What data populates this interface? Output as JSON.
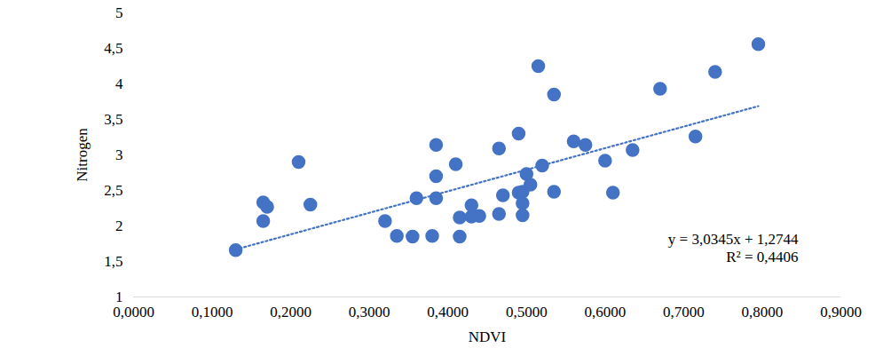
{
  "chart_data": {
    "type": "scatter",
    "x_label": "NDVI",
    "y_label": "Nitrogen",
    "color": "#4472c4",
    "marker": "circle",
    "x": [
      0.13,
      0.165,
      0.165,
      0.17,
      0.21,
      0.225,
      0.32,
      0.335,
      0.355,
      0.36,
      0.38,
      0.385,
      0.385,
      0.385,
      0.41,
      0.415,
      0.415,
      0.43,
      0.43,
      0.44,
      0.465,
      0.465,
      0.47,
      0.49,
      0.49,
      0.495,
      0.495,
      0.495,
      0.5,
      0.505,
      0.515,
      0.52,
      0.535,
      0.535,
      0.56,
      0.575,
      0.6,
      0.61,
      0.635,
      0.67,
      0.715,
      0.74,
      0.795
    ],
    "values": [
      1.66,
      2.33,
      2.07,
      2.27,
      2.9,
      2.3,
      2.07,
      1.86,
      1.85,
      2.39,
      1.86,
      2.39,
      2.7,
      3.14,
      2.87,
      1.85,
      2.12,
      2.29,
      2.13,
      2.14,
      3.09,
      2.17,
      2.43,
      2.47,
      3.3,
      2.15,
      2.32,
      2.48,
      2.73,
      2.58,
      4.25,
      2.85,
      3.85,
      2.48,
      3.19,
      3.14,
      2.92,
      2.47,
      3.07,
      3.93,
      3.26,
      4.17,
      4.56
    ],
    "trendline": {
      "slope": 3.0345,
      "intercept": 1.2744,
      "r_squared": 0.4406,
      "line_style": "dotted"
    },
    "annotations": [
      "y = 3,0345x + 1,2744",
      "R² = 0,4406"
    ],
    "xlim": [
      0,
      0.9
    ],
    "xticks": [
      {
        "value": 0,
        "label": "0,0000"
      },
      {
        "value": 0.1,
        "label": "0,1000"
      },
      {
        "value": 0.2,
        "label": "0,2000"
      },
      {
        "value": 0.3,
        "label": "0,3000"
      },
      {
        "value": 0.4,
        "label": "0,4000"
      },
      {
        "value": 0.5,
        "label": "0,5000"
      },
      {
        "value": 0.6,
        "label": "0,6000"
      },
      {
        "value": 0.7,
        "label": "0,7000"
      },
      {
        "value": 0.8,
        "label": "0,8000"
      },
      {
        "value": 0.9,
        "label": "0,9000"
      }
    ],
    "ylim": [
      1,
      5
    ],
    "yticks": [
      1,
      {
        "value": 1.5,
        "label": "1,5"
      },
      2,
      {
        "value": 2.5,
        "label": "2,5"
      },
      3,
      {
        "value": 3.5,
        "label": "3,5"
      },
      4,
      {
        "value": 4.5,
        "label": "4,5"
      },
      5
    ],
    "grid": false
  }
}
